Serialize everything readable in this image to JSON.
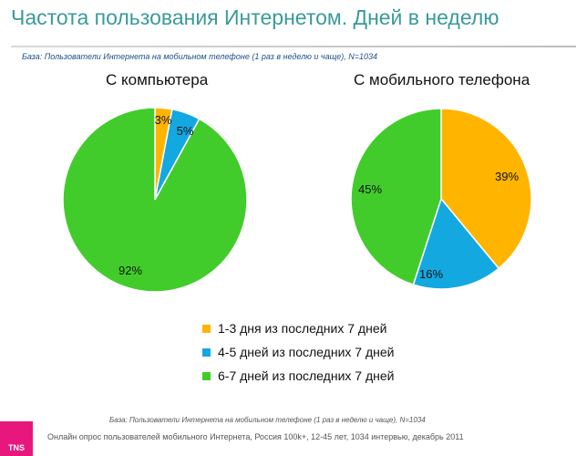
{
  "title": "Частота пользования Интернетом. Дней в неделю",
  "base_note_top": "База: Пользователи Интернета на мобильном телефоне (1 раз в неделю и чаще), N=1034",
  "base_note_bottom": "База: Пользователи Интернета на мобильном телефоне (1 раз в неделю и чаще), N=1034",
  "footer": "Онлайн опрос пользователей мобильного Интернета, Россия 100k+, 12-45 лет, 1034 интервью, декабрь 2011",
  "logo_text": "TNS",
  "colors": {
    "orange": "#FFB400",
    "blue": "#13A8E0",
    "green": "#42CC2B",
    "title": "#3a9a9a",
    "logo": "#e8177d"
  },
  "legend": [
    {
      "label": "1-3 дня из последних 7 дней",
      "color": "#FFB400"
    },
    {
      "label": "4-5 дней из последних 7 дней",
      "color": "#13A8E0"
    },
    {
      "label": "6-7 дней из последних 7 дней",
      "color": "#42CC2B"
    }
  ],
  "chart_data": [
    {
      "type": "pie",
      "title": "С компьютера",
      "categories": [
        "1-3 дня из последних 7 дней",
        "4-5 дней из последних 7 дней",
        "6-7 дней из последних 7 дней"
      ],
      "values": [
        3,
        5,
        92
      ],
      "labels": [
        "3%",
        "5%",
        "92%"
      ],
      "colors": [
        "#FFB400",
        "#13A8E0",
        "#42CC2B"
      ]
    },
    {
      "type": "pie",
      "title": "С мобильного телефона",
      "categories": [
        "1-3 дня из последних 7 дней",
        "4-5 дней из последних 7 дней",
        "6-7 дней из последних 7 дней"
      ],
      "values": [
        39,
        16,
        45
      ],
      "labels": [
        "39%",
        "16%",
        "45%"
      ],
      "colors": [
        "#FFB400",
        "#13A8E0",
        "#42CC2B"
      ]
    }
  ]
}
